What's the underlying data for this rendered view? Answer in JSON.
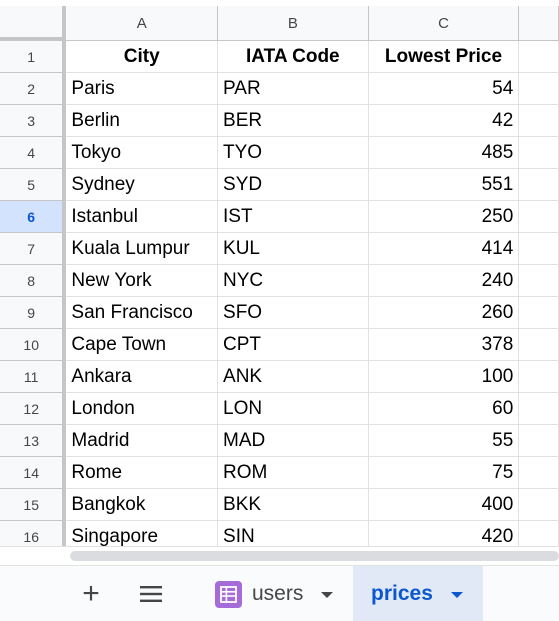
{
  "columns": [
    "A",
    "B",
    "C"
  ],
  "selected_row": "6",
  "table": {
    "header": [
      "City",
      "IATA Code",
      "Lowest Price"
    ],
    "rows": [
      {
        "num": "2",
        "city": "Paris",
        "code": "PAR",
        "price": "54"
      },
      {
        "num": "3",
        "city": "Berlin",
        "code": "BER",
        "price": "42"
      },
      {
        "num": "4",
        "city": "Tokyo",
        "code": "TYO",
        "price": "485"
      },
      {
        "num": "5",
        "city": "Sydney",
        "code": "SYD",
        "price": "551"
      },
      {
        "num": "6",
        "city": "Istanbul",
        "code": "IST",
        "price": "250"
      },
      {
        "num": "7",
        "city": "Kuala Lumpur",
        "code": "KUL",
        "price": "414"
      },
      {
        "num": "8",
        "city": "New York",
        "code": "NYC",
        "price": "240"
      },
      {
        "num": "9",
        "city": "San Francisco",
        "code": "SFO",
        "price": "260"
      },
      {
        "num": "10",
        "city": "Cape Town",
        "code": "CPT",
        "price": "378"
      },
      {
        "num": "11",
        "city": "Ankara",
        "code": "ANK",
        "price": "100"
      },
      {
        "num": "12",
        "city": "London",
        "code": "LON",
        "price": "60"
      },
      {
        "num": "13",
        "city": "Madrid",
        "code": "MAD",
        "price": "55"
      },
      {
        "num": "14",
        "city": "Rome",
        "code": "ROM",
        "price": "75"
      },
      {
        "num": "15",
        "city": "Bangkok",
        "code": "BKK",
        "price": "400"
      },
      {
        "num": "16",
        "city": "Singapore",
        "code": "SIN",
        "price": "420"
      }
    ]
  },
  "header_row_num": "1",
  "tabs": {
    "add_icon": "plus-icon",
    "menu_icon": "hamburger-menu-icon",
    "users_label": "users",
    "prices_label": "prices"
  },
  "colors": {
    "selected_row_bg": "#d3e3fd",
    "active_tab_bg": "#e1e9f7",
    "active_tab_text": "#0b57d0",
    "sheet_icon": "#a56cd9"
  }
}
